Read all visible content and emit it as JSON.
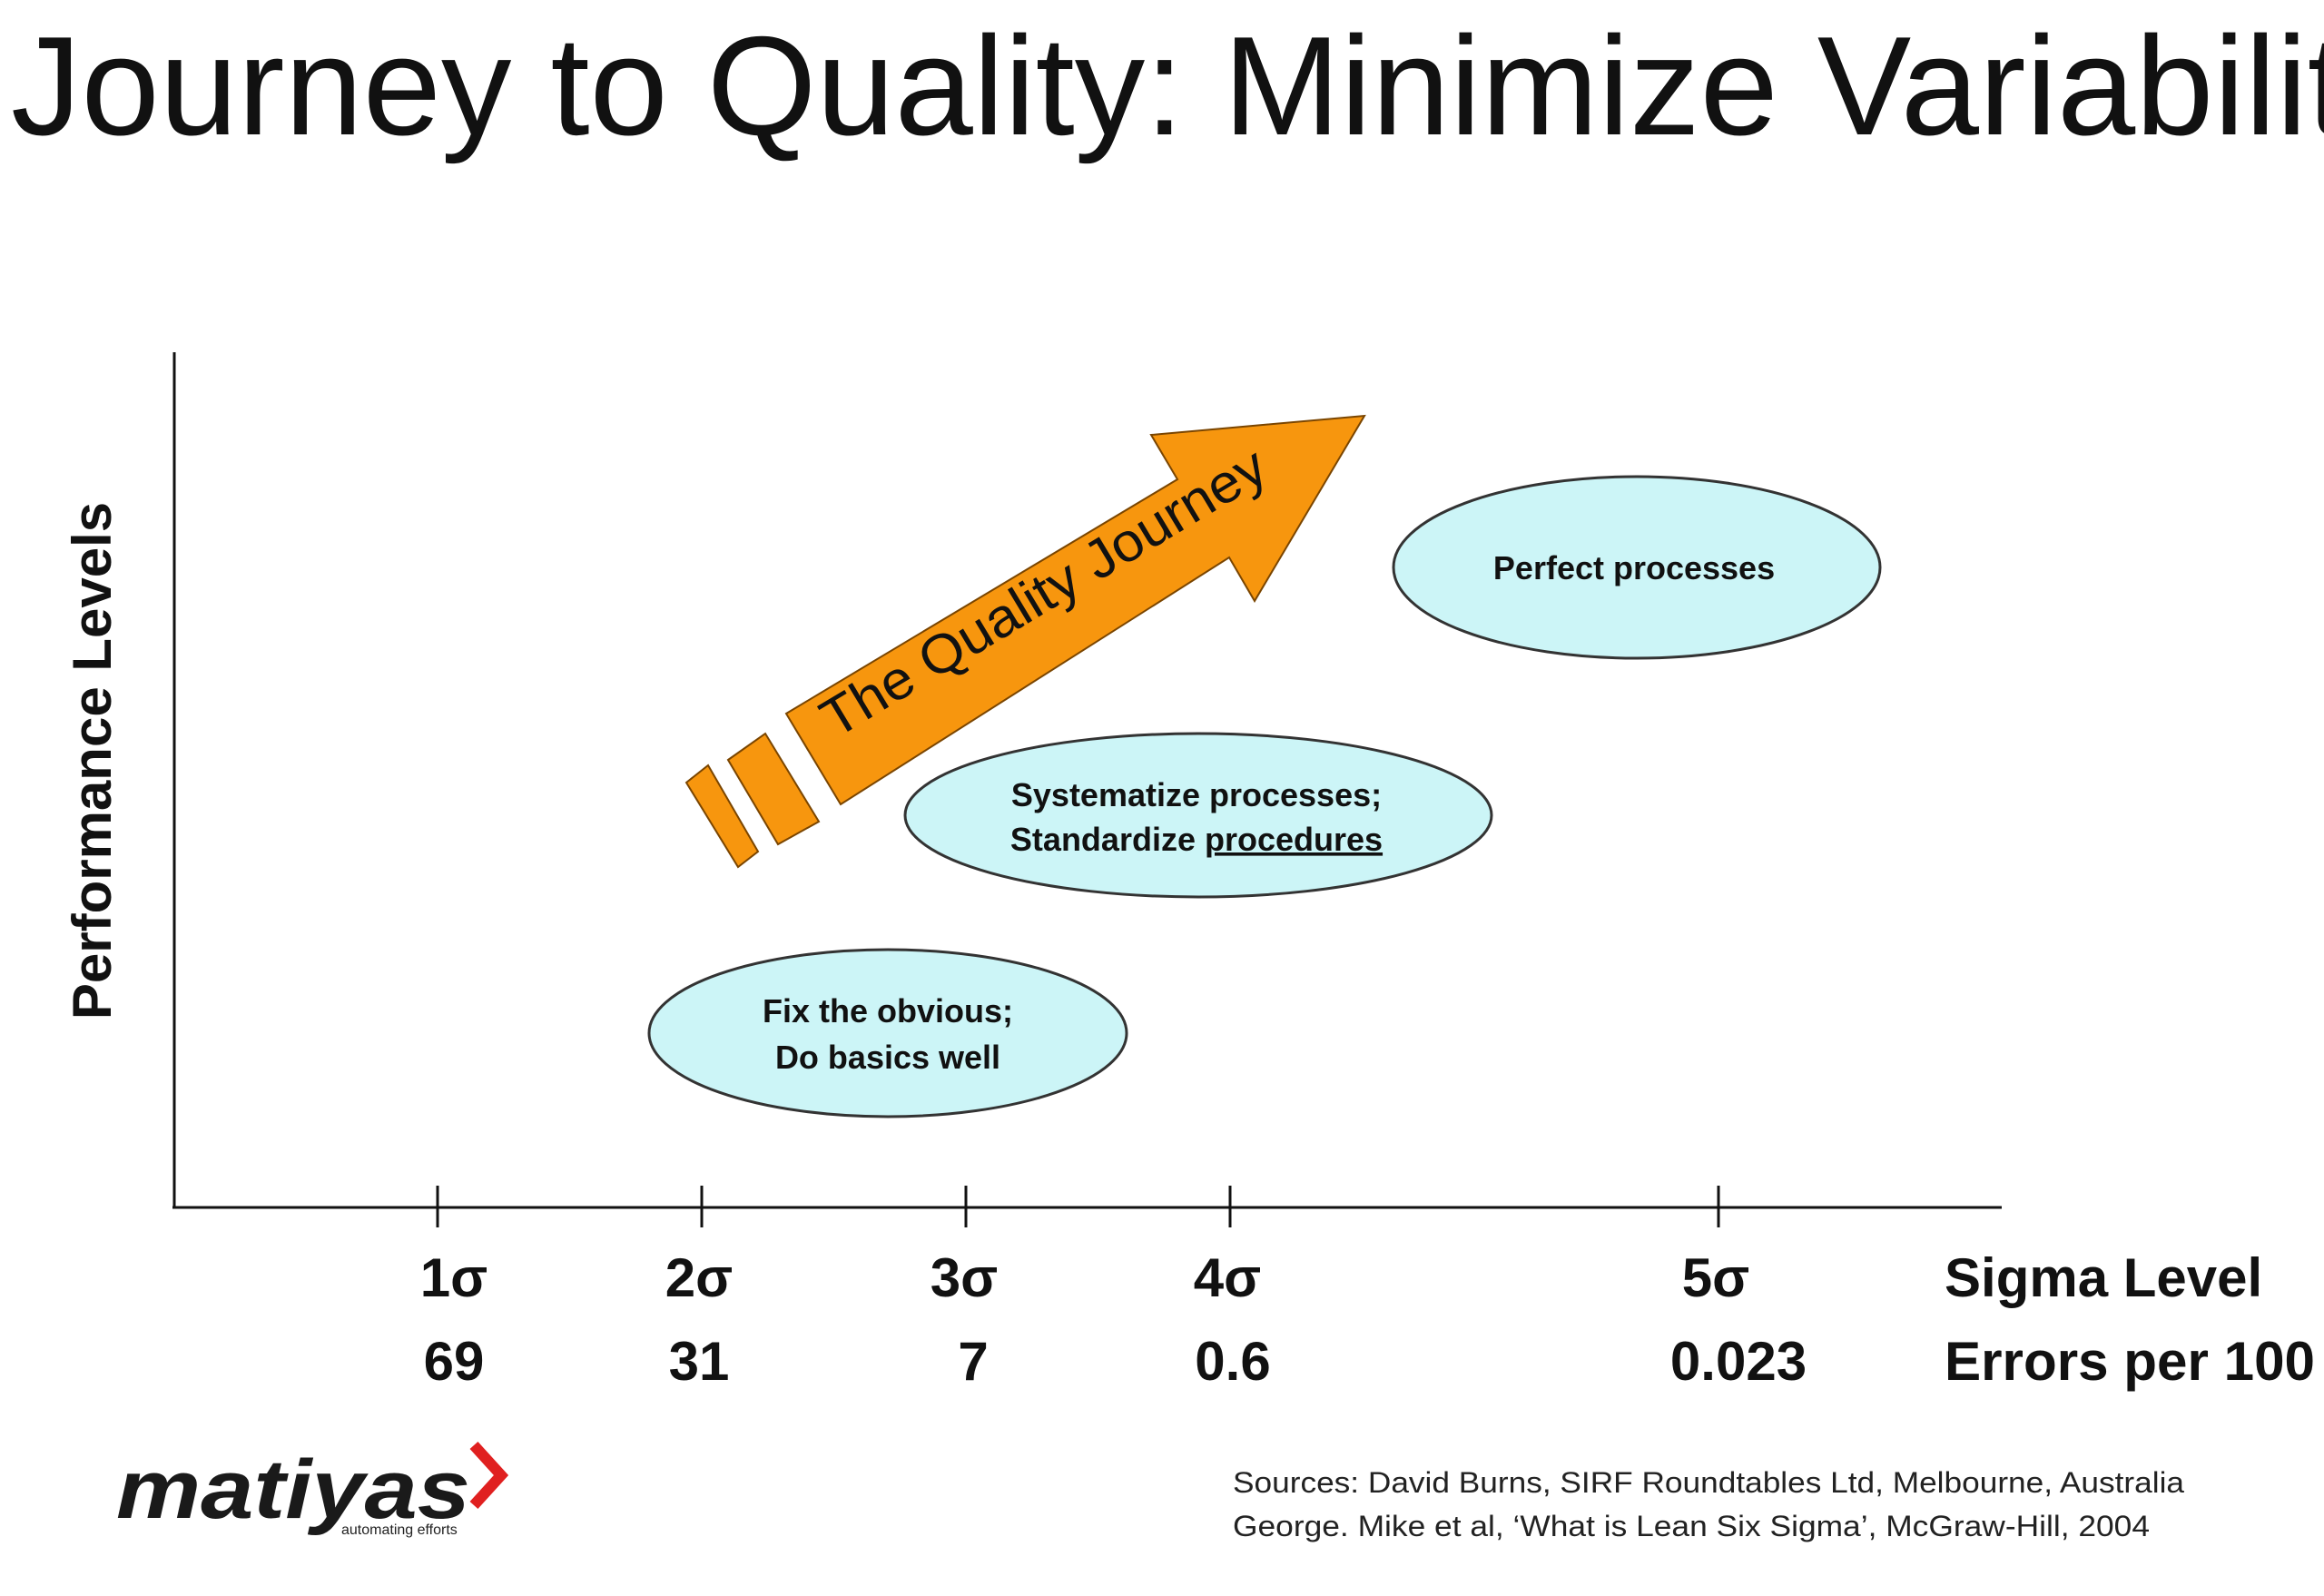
{
  "title": "Journey to Quality: Minimize Variability",
  "y_axis_label": "Performance Levels",
  "ticks": [
    {
      "sigma": "1σ",
      "errors": "69"
    },
    {
      "sigma": "2σ",
      "errors": "31"
    },
    {
      "sigma": "3σ",
      "errors": "7"
    },
    {
      "sigma": "4σ",
      "errors": "0.6"
    },
    {
      "sigma": "5σ",
      "errors": "0.023"
    }
  ],
  "row_labels": {
    "sigma": "Sigma Level",
    "errors": "Errors per 100"
  },
  "arrow_label": "The Quality Journey",
  "bubbles": {
    "low": {
      "line1": "Fix the obvious;",
      "line2": "Do basics well"
    },
    "mid": {
      "line1": "Systematize processes;",
      "line2_prefix": "Standardize ",
      "line2_underlined": "procedures"
    },
    "high": {
      "line1": "Perfect processes"
    }
  },
  "sources": {
    "line1": "Sources: David Burns, SIRF Roundtables Ltd, Melbourne, Australia",
    "line2": "George. Mike et al, ‘What is Lean Six Sigma’, McGraw-Hill, 2004"
  },
  "logo": {
    "name": "matiyas",
    "tagline": "automating efforts"
  },
  "colors": {
    "arrow_fill": "#F7960E",
    "arrow_stroke": "#7A4500",
    "bubble_fill": "#CCF5F7",
    "bubble_stroke": "#333333",
    "logo_accent": "#E02020",
    "text": "#111111"
  }
}
